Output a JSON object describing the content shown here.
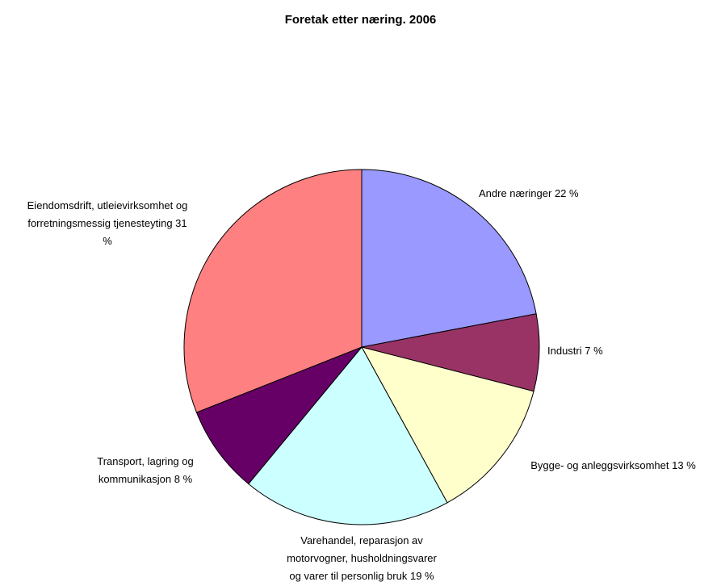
{
  "chart_data": {
    "type": "pie",
    "title": "Foretak etter næring. 2006",
    "categories": [
      "Andre næringer",
      "Industri",
      "Bygge- og anleggsvirksomhet",
      "Varehandel, reparasjon av motorvogner, husholdningsvarer og varer til personlig bruk",
      "Transport, lagring og kommunikasjon",
      "Eiendomsdrift, utleievirksomhet og forretningsmessig tjenesteyting"
    ],
    "values": [
      22,
      7,
      13,
      19,
      8,
      31
    ],
    "value_labels": [
      "22 %",
      "7 %",
      "13 %",
      "19 %",
      "8 %",
      "31 %"
    ],
    "colors": [
      "#9999ff",
      "#993366",
      "#ffffcc",
      "#ccffff",
      "#660066",
      "#ff8080"
    ]
  }
}
